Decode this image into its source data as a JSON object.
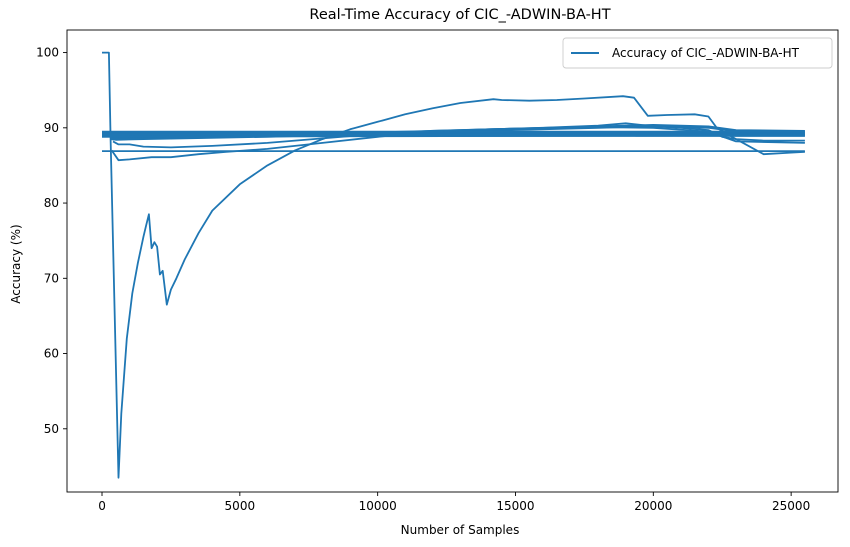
{
  "chart_data": {
    "type": "line",
    "title": "Real-Time Accuracy of CIC_-ADWIN-BA-HT",
    "xlabel": "Number of Samples",
    "ylabel": "Accuracy (%)",
    "xlim": [
      -1270,
      26700
    ],
    "ylim": [
      41.6,
      103.0
    ],
    "xticks": [
      0,
      5000,
      10000,
      15000,
      20000,
      25000
    ],
    "yticks": [
      50,
      60,
      70,
      80,
      90,
      100
    ],
    "grid": false,
    "legend_position": "top-right",
    "series_color": "#1f77b4",
    "series": [
      {
        "name": "Accuracy of CIC_-ADWIN-BA-HT",
        "segments": [
          [
            [
              0,
              100
            ],
            [
              250,
              100
            ],
            [
              310,
              88.5
            ],
            [
              600,
              43.5
            ],
            [
              700,
              52
            ],
            [
              900,
              62
            ],
            [
              1100,
              68
            ],
            [
              1300,
              72
            ],
            [
              1500,
              75.5
            ],
            [
              1600,
              77
            ],
            [
              1700,
              78.5
            ],
            [
              1800,
              74
            ],
            [
              1900,
              74.8
            ],
            [
              2000,
              74.2
            ],
            [
              2100,
              70.5
            ],
            [
              2200,
              71
            ],
            [
              2350,
              66.5
            ],
            [
              2500,
              68.5
            ],
            [
              2700,
              70
            ],
            [
              3000,
              72.5
            ],
            [
              3500,
              76
            ],
            [
              4000,
              79
            ],
            [
              5000,
              82.5
            ],
            [
              6000,
              85
            ],
            [
              7000,
              87
            ],
            [
              8000,
              88.5
            ],
            [
              9000,
              89.8
            ],
            [
              10000,
              90.8
            ],
            [
              11000,
              91.8
            ],
            [
              12000,
              92.6
            ],
            [
              13000,
              93.3
            ],
            [
              14200,
              93.8
            ],
            [
              14500,
              93.7
            ],
            [
              15500,
              93.6
            ],
            [
              16500,
              93.7
            ],
            [
              17500,
              93.9
            ],
            [
              18900,
              94.2
            ],
            [
              19300,
              94
            ],
            [
              19800,
              91.6
            ],
            [
              20500,
              91.7
            ],
            [
              21500,
              91.8
            ],
            [
              22000,
              91.5
            ],
            [
              22300,
              90
            ],
            [
              23000,
              88.5
            ],
            [
              24000,
              86.5
            ],
            [
              25000,
              86.7
            ],
            [
              25500,
              86.8
            ]
          ],
          [
            [
              0,
              86.9
            ],
            [
              25500,
              86.9
            ]
          ],
          [
            [
              350,
              87
            ],
            [
              600,
              85.7
            ],
            [
              1000,
              85.8
            ],
            [
              1800,
              86.1
            ],
            [
              2500,
              86.1
            ],
            [
              3500,
              86.5
            ],
            [
              4500,
              86.8
            ],
            [
              6000,
              87.2
            ],
            [
              8000,
              88
            ],
            [
              10000,
              88.8
            ],
            [
              12000,
              89.5
            ],
            [
              14000,
              89.8
            ],
            [
              16000,
              90
            ],
            [
              18000,
              90.3
            ],
            [
              19000,
              90.6
            ],
            [
              20000,
              90.2
            ],
            [
              21000,
              90
            ],
            [
              22000,
              89.7
            ],
            [
              22500,
              88.8
            ],
            [
              23000,
              88.5
            ],
            [
              24000,
              88.3
            ],
            [
              25500,
              88.3
            ]
          ],
          [
            [
              300,
              88.6
            ],
            [
              500,
              88.5
            ],
            [
              1500,
              88.6
            ],
            [
              3000,
              88.7
            ],
            [
              6000,
              88.9
            ],
            [
              9000,
              89.2
            ],
            [
              12000,
              89.5
            ],
            [
              15000,
              89.8
            ],
            [
              18000,
              90.1
            ],
            [
              20000,
              90.3
            ],
            [
              22000,
              90.1
            ],
            [
              23000,
              89.6
            ],
            [
              25500,
              89.5
            ]
          ],
          [
            [
              0,
              89.4
            ],
            [
              25500,
              89.4
            ]
          ],
          [
            [
              0,
              89.2
            ],
            [
              25500,
              89.2
            ]
          ],
          [
            [
              0,
              89.0
            ],
            [
              25500,
              89.0
            ]
          ],
          [
            [
              400,
              88.2
            ],
            [
              600,
              87.8
            ],
            [
              1000,
              87.8
            ],
            [
              1500,
              87.5
            ],
            [
              2500,
              87.4
            ],
            [
              4000,
              87.6
            ],
            [
              6000,
              88
            ],
            [
              8000,
              88.6
            ],
            [
              10000,
              89.2
            ],
            [
              12000,
              89.6
            ],
            [
              15000,
              89.9
            ],
            [
              18000,
              90.1
            ],
            [
              20000,
              90
            ],
            [
              22000,
              89.5
            ],
            [
              23000,
              88.2
            ],
            [
              25500,
              88.0
            ]
          ],
          [
            [
              0,
              88.8
            ],
            [
              25500,
              89.0
            ]
          ]
        ]
      }
    ]
  }
}
